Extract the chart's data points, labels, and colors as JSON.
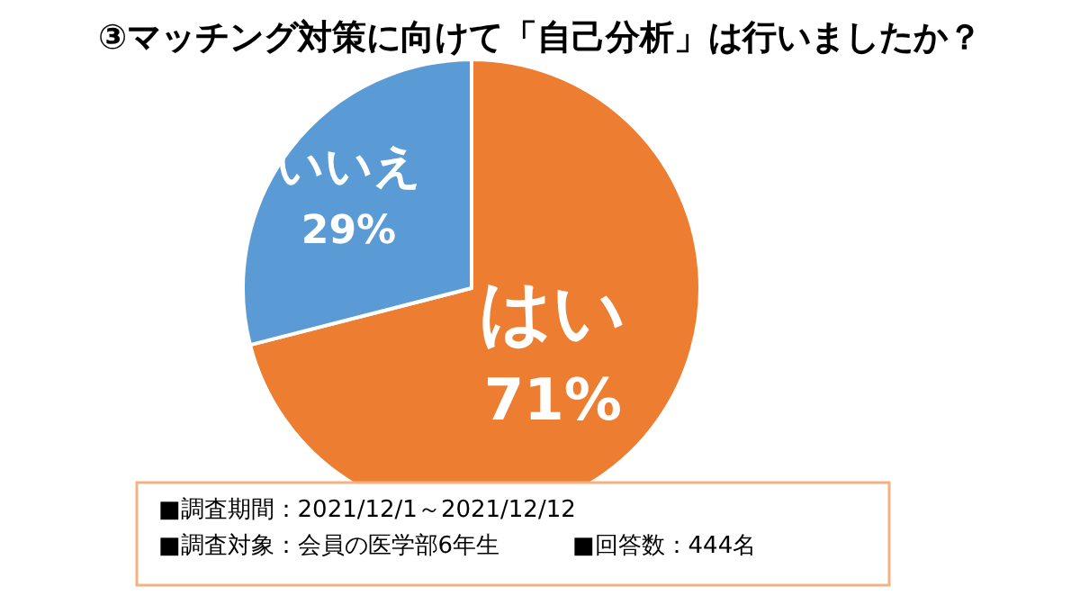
{
  "chart_data": {
    "type": "pie",
    "title": "③マッチング対策に向けて「自己分析」は行いましたか？",
    "categories": [
      "はい",
      "いいえ"
    ],
    "values": [
      71,
      29
    ],
    "value_labels": [
      "71%",
      "29%"
    ],
    "colors": [
      "#ed7d31",
      "#5b9bd5"
    ],
    "annotations": [
      "■調査期間：2021/12/1～2021/12/12",
      "■調査対象：会員の医学部6年生",
      "■回答数：444名"
    ]
  }
}
